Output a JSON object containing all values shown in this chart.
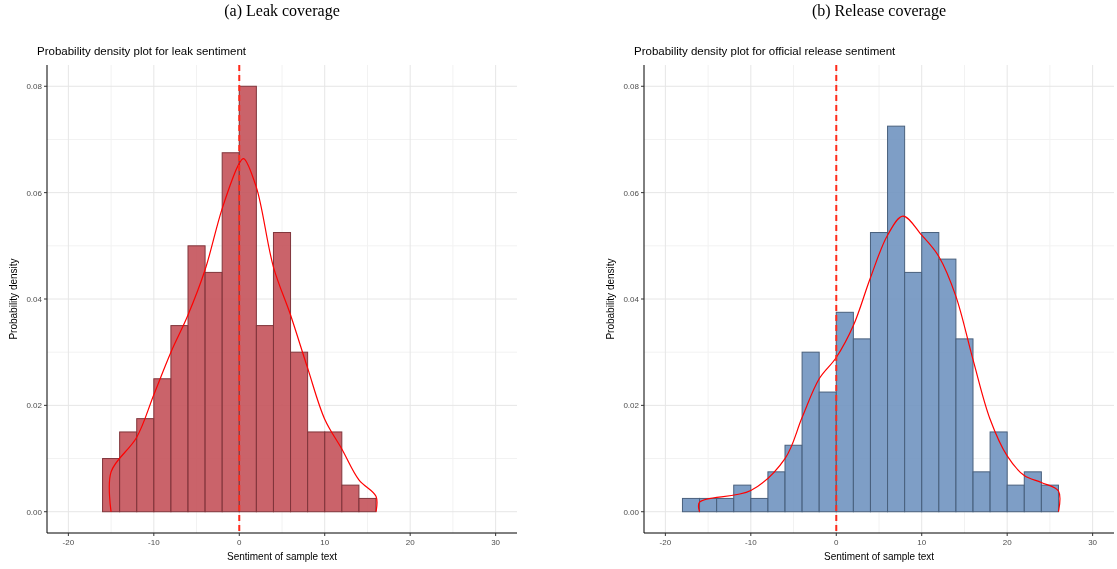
{
  "chart_data": [
    {
      "type": "histogram",
      "title": "(a) Leak coverage",
      "subtitle": "Probability density plot for leak sentiment",
      "xlabel": "Sentiment of sample text",
      "ylabel": "Probability density",
      "bins": [
        -20,
        -18,
        -16,
        -14,
        -12,
        -10,
        -8,
        -6,
        -4,
        -2,
        0,
        2,
        4,
        6,
        8,
        10,
        12,
        14,
        16,
        18,
        20,
        22,
        24,
        26,
        28,
        30
      ],
      "series": [
        {
          "color": "#c4525a",
          "values": [
            0,
            0,
            0.01,
            0.015,
            0.0175,
            0.025,
            0.035,
            0.05,
            0.045,
            0.0675,
            0.08,
            0.035,
            0.0525,
            0.03,
            0.015,
            0.015,
            0.005,
            0.0025,
            0,
            0,
            0,
            0,
            0,
            0,
            0
          ]
        },
        {
          "type": "line",
          "color": "#ff0000",
          "x": [
            -15,
            -15,
            -12,
            -10,
            -8,
            -6,
            -4,
            -2,
            0,
            0.5,
            2,
            4,
            6,
            8,
            10,
            12,
            14,
            16,
            16
          ],
          "values": [
            0,
            0.0075,
            0.014,
            0.022,
            0.03,
            0.037,
            0.0455,
            0.057,
            0.0655,
            0.0664,
            0.061,
            0.046,
            0.037,
            0.027,
            0.0174,
            0.0118,
            0.006,
            0.0029,
            0
          ]
        }
      ],
      "xlim": [
        -22.5,
        32.5
      ],
      "xticks": [
        -20,
        -10,
        0,
        10,
        20,
        30
      ],
      "ylim": [
        -0.004,
        0.084
      ],
      "yticks": [
        {
          "value": 0,
          "label": "0.00"
        },
        {
          "value": 0.02,
          "label": "0.02"
        },
        {
          "value": 0.04,
          "label": "0.04"
        },
        {
          "value": 0.06,
          "label": "0.06"
        },
        {
          "value": 0.08,
          "label": "0.08"
        }
      ],
      "grid": true,
      "ref_lines": [
        {
          "axis": "x",
          "value": 0,
          "color": "#ff2a1a",
          "line_style": "dashed"
        }
      ]
    },
    {
      "type": "histogram",
      "title": "(b) Release coverage",
      "subtitle": "Probability density plot for official release sentiment",
      "xlabel": "Sentiment of sample text",
      "ylabel": "Probability density",
      "bins": [
        -20,
        -18,
        -16,
        -14,
        -12,
        -10,
        -8,
        -6,
        -4,
        -2,
        0,
        2,
        4,
        6,
        8,
        10,
        12,
        14,
        16,
        18,
        20,
        22,
        24,
        26,
        28,
        30
      ],
      "series": [
        {
          "color": "#7093c0",
          "values": [
            0,
            0.0025,
            0.0025,
            0.0025,
            0.005,
            0.0025,
            0.0075,
            0.0125,
            0.03,
            0.0225,
            0.0375,
            0.0325,
            0.0525,
            0.0725,
            0.045,
            0.0525,
            0.0475,
            0.0325,
            0.0075,
            0.015,
            0.005,
            0.0075,
            0.005,
            0,
            0
          ]
        },
        {
          "type": "line",
          "color": "#ff0000",
          "x": [
            -16,
            -16,
            -10,
            -6,
            -4,
            -2,
            0,
            2,
            4,
            6,
            7.8,
            10,
            12,
            14,
            16,
            18,
            20,
            22,
            24,
            26,
            26
          ],
          "values": [
            0,
            0.0018,
            0.004,
            0.01,
            0.0177,
            0.025,
            0.029,
            0.035,
            0.044,
            0.052,
            0.0556,
            0.052,
            0.048,
            0.0405,
            0.0286,
            0.0174,
            0.0105,
            0.0068,
            0.0055,
            0.0039,
            0
          ]
        }
      ],
      "xlim": [
        -22.5,
        32.5
      ],
      "xticks": [
        -20,
        -10,
        0,
        10,
        20,
        30
      ],
      "ylim": [
        -0.004,
        0.084
      ],
      "yticks": [
        {
          "value": 0,
          "label": "0.00"
        },
        {
          "value": 0.02,
          "label": "0.02"
        },
        {
          "value": 0.04,
          "label": "0.04"
        },
        {
          "value": 0.06,
          "label": "0.06"
        },
        {
          "value": 0.08,
          "label": "0.08"
        }
      ],
      "grid": true,
      "ref_lines": [
        {
          "axis": "x",
          "value": 0,
          "color": "#ff2a1a",
          "line_style": "dashed"
        }
      ]
    }
  ]
}
